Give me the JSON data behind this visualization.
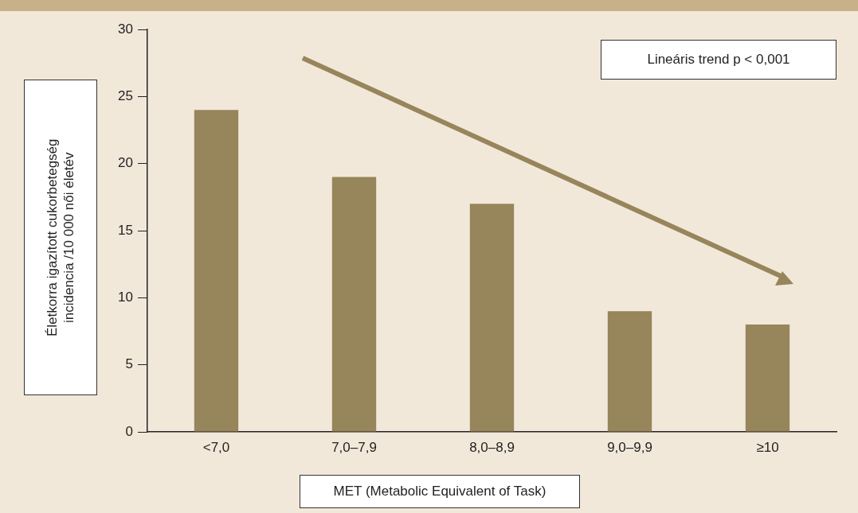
{
  "chart_data": {
    "type": "bar",
    "categories": [
      "<7,0",
      "7,0–7,9",
      "8,0–8,9",
      "9,0–9,9",
      "≥10"
    ],
    "values": [
      24,
      19,
      17,
      9,
      8
    ],
    "color": "#97855b",
    "xlabel": "MET (Metabolic Equivalent of Task)",
    "ylabel": "Életkorra igazított cukorbetegség incidencia /10 000 női életév",
    "ylim": [
      0,
      30
    ],
    "yticks": [
      0,
      5,
      10,
      15,
      20,
      25,
      30
    ],
    "annotations": [
      "Lineáris trend p < 0,001"
    ],
    "grid": false,
    "legend": false
  }
}
